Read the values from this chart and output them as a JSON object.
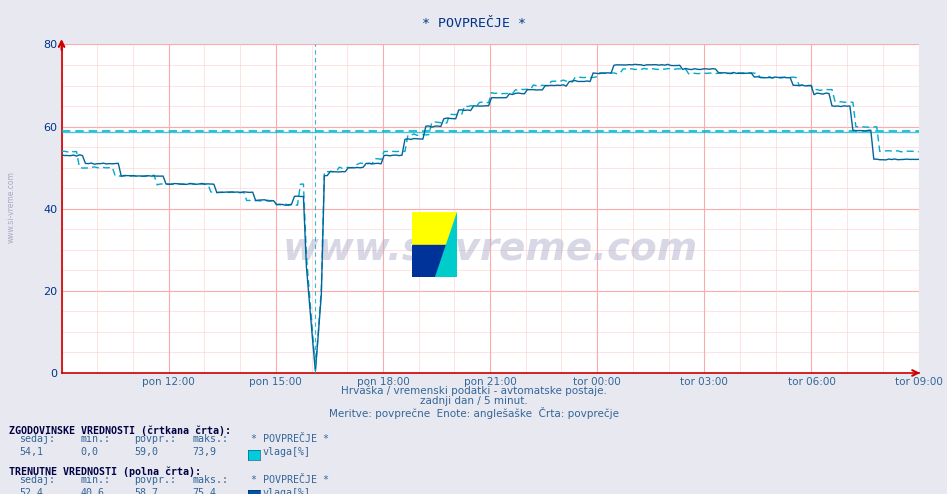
{
  "title": "* POVPREČJE *",
  "bg_color": "#e8e8f0",
  "plot_bg_color": "#ffffff",
  "grid_color_major": "#ffaaaa",
  "grid_color_minor": "#ffcccc",
  "line_color_solid": "#006699",
  "line_color_dashed": "#00aacc",
  "hline_color_hist": "#00bbcc",
  "hline_color_curr": "#00aacc",
  "axis_color": "#cc0000",
  "text_color": "#003388",
  "xlabel_color": "#336699",
  "ylim": [
    0,
    80
  ],
  "yticks": [
    0,
    20,
    40,
    60,
    80
  ],
  "xlabel_times": [
    "pon 12:00",
    "pon 15:00",
    "pon 18:00",
    "pon 21:00",
    "tor 00:00",
    "tor 03:00",
    "tor 06:00",
    "tor 09:00"
  ],
  "hline_y_hist": 59.0,
  "hline_y_curr": 58.7,
  "watermark": "www.si-vreme.com",
  "subtitle1": "Hrvaška / vremenski podatki - avtomatske postaje.",
  "subtitle2": "zadnji dan / 5 minut.",
  "subtitle3": "Meritve: povprečne  Enote: anglešaške  Črta: povprečje",
  "legend_hist_label": "ZGODOVINSKE VREDNOSTI (črtkana črta):",
  "legend_hist_sedaj": "54,1",
  "legend_hist_min": "0,0",
  "legend_hist_povpr": "59,0",
  "legend_hist_maks": "73,9",
  "legend_hist_name": "* POVPREČJE *",
  "legend_hist_unit": "vlaga[%]",
  "legend_curr_label": "TRENUTNE VREDNOSTI (polna črta):",
  "legend_curr_sedaj": "52,4",
  "legend_curr_min": "40,6",
  "legend_curr_povpr": "58,7",
  "legend_curr_maks": "75,4",
  "legend_curr_name": "* POVPREČJE *",
  "legend_curr_unit": "vlaga[%]",
  "color_hist_swatch": "#00ccdd",
  "color_curr_swatch": "#0055aa",
  "n_points": 288
}
